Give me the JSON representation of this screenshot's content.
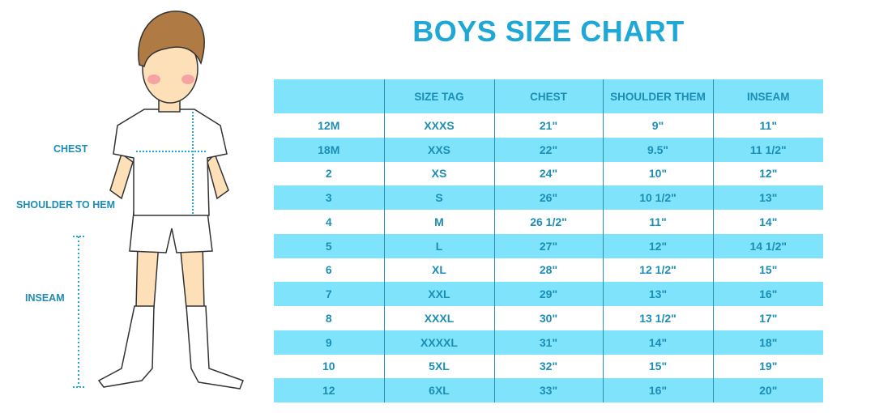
{
  "title": "BOYS SIZE CHART",
  "figure_labels": {
    "chest": "CHEST",
    "shoulder_to_hem": "SHOULDER TO HEM",
    "inseam": "INSEAM"
  },
  "colors": {
    "accent": "#1fa8d6",
    "stripe": "#7ee3fb",
    "text": "#1c8db4"
  },
  "table": {
    "headers": [
      "",
      "SIZE TAG",
      "CHEST",
      "SHOULDER THEM",
      "INSEAM"
    ],
    "rows": [
      [
        "12M",
        "XXXS",
        "21\"",
        "9\"",
        "11\""
      ],
      [
        "18M",
        "XXS",
        "22\"",
        "9.5\"",
        "11 1/2\""
      ],
      [
        "2",
        "XS",
        "24\"",
        "10\"",
        "12\""
      ],
      [
        "3",
        "S",
        "26\"",
        "10 1/2\"",
        "13\""
      ],
      [
        "4",
        "M",
        "26 1/2\"",
        "11\"",
        "14\""
      ],
      [
        "5",
        "L",
        "27\"",
        "12\"",
        "14 1/2\""
      ],
      [
        "6",
        "XL",
        "28\"",
        "12 1/2\"",
        "15\""
      ],
      [
        "7",
        "XXL",
        "29\"",
        "13\"",
        "16\""
      ],
      [
        "8",
        "XXXL",
        "30\"",
        "13 1/2\"",
        "17\""
      ],
      [
        "9",
        "XXXXL",
        "31\"",
        "14\"",
        "18\""
      ],
      [
        "10",
        "5XL",
        "32\"",
        "15\"",
        "19\""
      ],
      [
        "12",
        "6XL",
        "33\"",
        "16\"",
        "20\""
      ]
    ]
  }
}
